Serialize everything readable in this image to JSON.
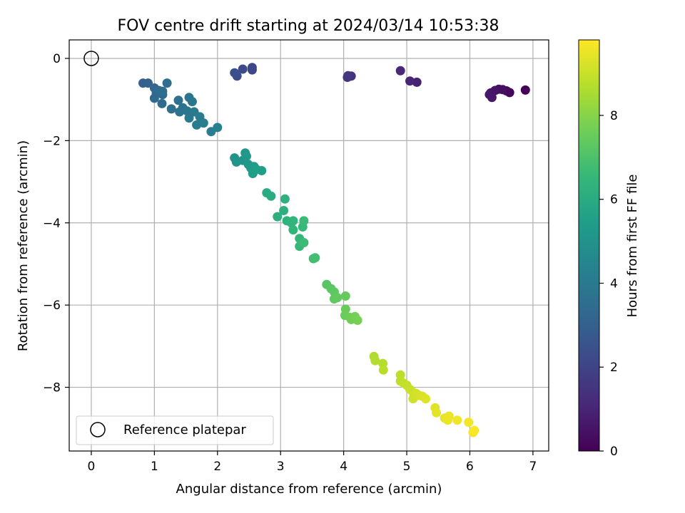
{
  "chart_data": {
    "type": "scatter",
    "title": "FOV centre drift starting at 2024/03/14 10:53:38",
    "xlabel": "Angular distance from reference (arcmin)",
    "ylabel": "Rotation from reference (arcmin)",
    "xlim": [
      -0.35,
      7.25
    ],
    "ylim": [
      -9.55,
      0.45
    ],
    "x_ticks": [
      0,
      1,
      2,
      3,
      4,
      5,
      6,
      7
    ],
    "y_ticks": [
      0,
      -2,
      -4,
      -6,
      -8
    ],
    "x_tick_labels": [
      "0",
      "1",
      "2",
      "3",
      "4",
      "5",
      "6",
      "7"
    ],
    "y_tick_labels": [
      "0",
      "−2",
      "−4",
      "−6",
      "−8"
    ],
    "grid": true,
    "colormap": "viridis",
    "legend": {
      "position": "lower-left",
      "entries": [
        {
          "label": "Reference platepar",
          "marker": "open-circle"
        }
      ]
    },
    "reference_point": {
      "x": 0,
      "y": 0
    },
    "colorbar": {
      "label": "Hours from first FF file",
      "range": [
        0,
        9.8
      ],
      "ticks": [
        0,
        2,
        4,
        6,
        8
      ],
      "tick_labels": [
        "0",
        "2",
        "4",
        "6",
        "8"
      ]
    },
    "series": [
      {
        "points": [
          [
            6.88,
            -0.77,
            0.05
          ],
          [
            6.63,
            -0.83,
            0.15
          ],
          [
            6.58,
            -0.79,
            0.25
          ],
          [
            6.52,
            -0.76,
            0.35
          ],
          [
            6.46,
            -0.75,
            0.42
          ],
          [
            6.4,
            -0.78,
            0.5
          ],
          [
            6.33,
            -0.84,
            0.55
          ],
          [
            6.31,
            -0.88,
            0.6
          ],
          [
            6.35,
            -0.95,
            0.65
          ],
          [
            5.16,
            -0.58,
            0.9
          ],
          [
            5.05,
            -0.55,
            1.0
          ],
          [
            4.9,
            -0.3,
            1.1
          ],
          [
            4.12,
            -0.43,
            1.4
          ],
          [
            4.06,
            -0.46,
            1.5
          ],
          [
            4.07,
            -0.42,
            1.55
          ],
          [
            2.55,
            -0.22,
            2.1
          ],
          [
            2.55,
            -0.28,
            2.15
          ],
          [
            2.4,
            -0.26,
            2.25
          ],
          [
            2.31,
            -0.43,
            2.35
          ],
          [
            2.27,
            -0.35,
            2.4
          ],
          [
            0.82,
            -0.6,
            3.0
          ],
          [
            0.9,
            -0.6,
            3.1
          ],
          [
            1.0,
            -0.72,
            3.2
          ],
          [
            1.03,
            -0.85,
            3.25
          ],
          [
            1.0,
            -0.97,
            3.3
          ],
          [
            1.07,
            -0.78,
            3.35
          ],
          [
            1.13,
            -0.88,
            3.4
          ],
          [
            1.12,
            -1.1,
            3.45
          ],
          [
            1.2,
            -0.6,
            3.5
          ],
          [
            1.13,
            -0.8,
            3.55
          ],
          [
            1.27,
            -1.23,
            3.6
          ],
          [
            1.38,
            -1.02,
            3.65
          ],
          [
            1.4,
            -1.3,
            3.7
          ],
          [
            1.45,
            -1.2,
            3.75
          ],
          [
            1.55,
            -0.95,
            3.8
          ],
          [
            1.52,
            -1.28,
            3.85
          ],
          [
            1.6,
            -1.05,
            3.9
          ],
          [
            1.55,
            -1.45,
            3.95
          ],
          [
            1.63,
            -1.3,
            4.0
          ],
          [
            1.72,
            -1.42,
            4.05
          ],
          [
            1.67,
            -1.62,
            4.1
          ],
          [
            1.78,
            -1.57,
            4.15
          ],
          [
            1.9,
            -1.78,
            4.2
          ],
          [
            2.0,
            -1.68,
            4.25
          ],
          [
            2.27,
            -2.42,
            5.0
          ],
          [
            2.3,
            -2.52,
            5.05
          ],
          [
            2.4,
            -2.48,
            5.1
          ],
          [
            2.44,
            -2.3,
            5.15
          ],
          [
            2.46,
            -2.38,
            5.2
          ],
          [
            2.49,
            -2.58,
            5.25
          ],
          [
            2.53,
            -2.67,
            5.3
          ],
          [
            2.58,
            -2.63,
            5.35
          ],
          [
            2.56,
            -2.8,
            5.4
          ],
          [
            2.62,
            -2.7,
            5.45
          ],
          [
            2.7,
            -2.73,
            5.5
          ],
          [
            2.78,
            -3.27,
            6.0
          ],
          [
            2.85,
            -3.35,
            6.05
          ],
          [
            2.95,
            -3.85,
            6.15
          ],
          [
            3.05,
            -3.7,
            6.2
          ],
          [
            3.07,
            -3.42,
            6.25
          ],
          [
            3.1,
            -3.95,
            6.3
          ],
          [
            3.17,
            -4.0,
            6.35
          ],
          [
            3.2,
            -3.95,
            6.4
          ],
          [
            3.2,
            -4.17,
            6.45
          ],
          [
            3.3,
            -4.38,
            6.5
          ],
          [
            3.3,
            -4.57,
            6.55
          ],
          [
            3.35,
            -4.1,
            6.6
          ],
          [
            3.37,
            -3.95,
            6.65
          ],
          [
            3.37,
            -4.48,
            6.7
          ],
          [
            3.52,
            -4.87,
            6.75
          ],
          [
            3.55,
            -4.85,
            6.8
          ],
          [
            3.73,
            -5.5,
            7.2
          ],
          [
            3.8,
            -5.6,
            7.25
          ],
          [
            3.85,
            -5.68,
            7.3
          ],
          [
            3.85,
            -5.85,
            7.35
          ],
          [
            3.9,
            -5.82,
            7.4
          ],
          [
            4.03,
            -5.78,
            7.45
          ],
          [
            4.03,
            -6.1,
            7.5
          ],
          [
            4.02,
            -6.25,
            7.55
          ],
          [
            4.1,
            -6.3,
            7.6
          ],
          [
            4.12,
            -6.35,
            7.65
          ],
          [
            4.18,
            -6.28,
            7.7
          ],
          [
            4.22,
            -6.37,
            7.75
          ],
          [
            4.48,
            -7.25,
            8.6
          ],
          [
            4.5,
            -7.35,
            8.65
          ],
          [
            4.62,
            -7.42,
            8.7
          ],
          [
            4.63,
            -7.58,
            8.75
          ],
          [
            4.9,
            -7.7,
            8.8
          ],
          [
            4.9,
            -7.85,
            8.85
          ],
          [
            4.95,
            -7.9,
            8.9
          ],
          [
            5.0,
            -7.95,
            8.95
          ],
          [
            5.05,
            -8.05,
            9.0
          ],
          [
            5.1,
            -8.12,
            9.05
          ],
          [
            5.1,
            -8.28,
            9.1
          ],
          [
            5.15,
            -8.15,
            9.15
          ],
          [
            5.2,
            -8.2,
            9.2
          ],
          [
            5.25,
            -8.22,
            9.25
          ],
          [
            5.3,
            -8.28,
            9.3
          ],
          [
            5.45,
            -8.5,
            9.35
          ],
          [
            5.47,
            -8.62,
            9.4
          ],
          [
            5.6,
            -8.75,
            9.45
          ],
          [
            5.67,
            -8.7,
            9.5
          ],
          [
            5.65,
            -8.8,
            9.55
          ],
          [
            5.8,
            -8.8,
            9.6
          ],
          [
            5.98,
            -8.85,
            9.65
          ],
          [
            6.05,
            -9.1,
            9.7
          ],
          [
            6.07,
            -9.05,
            9.75
          ]
        ]
      }
    ]
  }
}
